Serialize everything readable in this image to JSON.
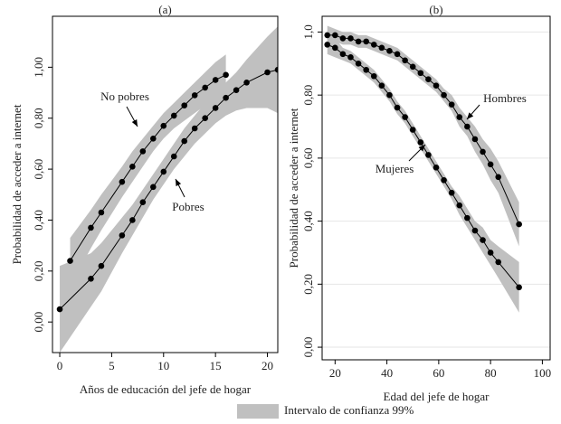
{
  "chart_data": [
    {
      "type": "line",
      "title": "(a)",
      "x_label": "Años de educación del jefe de hogar",
      "y_label": "Probabilidad de acceder a internet",
      "xlim": [
        -0.7,
        21
      ],
      "ylim": [
        -0.12,
        1.2
      ],
      "grid": false,
      "xticks": [
        0,
        5,
        10,
        15,
        20
      ],
      "yticks": [
        {
          "value": 0,
          "label": "0,00"
        },
        {
          "value": 0.2,
          "label": "0,20"
        },
        {
          "value": 0.4,
          "label": "0,40"
        },
        {
          "value": 0.6,
          "label": "0,60"
        },
        {
          "value": 0.8,
          "label": "0,80"
        },
        {
          "value": 1,
          "label": "1,00"
        }
      ],
      "series": [
        {
          "name": "No pobres",
          "color": "#000000",
          "x": [
            1,
            3,
            4,
            6,
            7,
            8,
            9,
            10,
            11,
            12,
            13,
            14,
            15,
            16
          ],
          "values": [
            0.24,
            0.37,
            0.43,
            0.55,
            0.61,
            0.67,
            0.72,
            0.77,
            0.81,
            0.85,
            0.89,
            0.92,
            0.95,
            0.97
          ],
          "ci_lower": [
            0.14,
            0.29,
            0.36,
            0.49,
            0.55,
            0.61,
            0.67,
            0.72,
            0.76,
            0.79,
            0.82,
            0.85,
            0.87,
            0.88
          ],
          "ci_upper": [
            0.33,
            0.44,
            0.5,
            0.61,
            0.67,
            0.72,
            0.77,
            0.82,
            0.86,
            0.9,
            0.94,
            0.98,
            1.02,
            1.05
          ]
        },
        {
          "name": "Pobres",
          "color": "#000000",
          "x": [
            0,
            3,
            4,
            6,
            7,
            8,
            9,
            10,
            11,
            12,
            13,
            14,
            15,
            16,
            17,
            18,
            20,
            21
          ],
          "values": [
            0.05,
            0.17,
            0.22,
            0.34,
            0.4,
            0.47,
            0.53,
            0.59,
            0.65,
            0.71,
            0.76,
            0.8,
            0.84,
            0.88,
            0.91,
            0.94,
            0.98,
            0.99
          ],
          "ci_lower": [
            -0.12,
            0.06,
            0.12,
            0.27,
            0.34,
            0.41,
            0.48,
            0.54,
            0.6,
            0.65,
            0.7,
            0.74,
            0.78,
            0.81,
            0.83,
            0.84,
            0.84,
            0.82
          ],
          "ci_upper": [
            0.22,
            0.27,
            0.31,
            0.41,
            0.46,
            0.52,
            0.58,
            0.64,
            0.7,
            0.76,
            0.81,
            0.86,
            0.9,
            0.94,
            0.98,
            1.03,
            1.12,
            1.16
          ]
        }
      ]
    },
    {
      "type": "line",
      "title": "(b)",
      "x_label": "Edad del jefe de hogar",
      "y_label": "Probabilidad de acceder a internet",
      "xlim": [
        15,
        103
      ],
      "ylim": [
        -0.04,
        1.05
      ],
      "grid": true,
      "xticks": [
        20,
        40,
        60,
        80,
        100
      ],
      "yticks": [
        {
          "value": 0,
          "label": "0,00"
        },
        {
          "value": 0.2,
          "label": "0,20"
        },
        {
          "value": 0.4,
          "label": "0,40"
        },
        {
          "value": 0.6,
          "label": "0,60"
        },
        {
          "value": 0.8,
          "label": "0,80"
        },
        {
          "value": 1,
          "label": "1,0"
        }
      ],
      "series": [
        {
          "name": "Hombres",
          "color": "#000000",
          "x": [
            17,
            20,
            23,
            26,
            29,
            32,
            35,
            38,
            41,
            44,
            47,
            50,
            53,
            56,
            59,
            62,
            65,
            68,
            71,
            74,
            77,
            80,
            83,
            91
          ],
          "values": [
            0.99,
            0.99,
            0.98,
            0.98,
            0.97,
            0.97,
            0.96,
            0.95,
            0.94,
            0.93,
            0.91,
            0.89,
            0.87,
            0.85,
            0.83,
            0.8,
            0.77,
            0.73,
            0.7,
            0.66,
            0.62,
            0.58,
            0.54,
            0.39
          ],
          "ci_lower": [
            0.96,
            0.97,
            0.96,
            0.96,
            0.95,
            0.95,
            0.94,
            0.93,
            0.92,
            0.91,
            0.89,
            0.87,
            0.85,
            0.83,
            0.81,
            0.78,
            0.75,
            0.7,
            0.67,
            0.62,
            0.58,
            0.53,
            0.49,
            0.32
          ],
          "ci_upper": [
            1.02,
            1.01,
            1.0,
            1.0,
            0.99,
            0.99,
            0.98,
            0.97,
            0.96,
            0.95,
            0.93,
            0.91,
            0.89,
            0.87,
            0.85,
            0.82,
            0.8,
            0.76,
            0.73,
            0.7,
            0.66,
            0.63,
            0.59,
            0.46
          ]
        },
        {
          "name": "Mujeres",
          "color": "#000000",
          "x": [
            17,
            20,
            23,
            26,
            29,
            32,
            35,
            38,
            41,
            44,
            47,
            50,
            53,
            56,
            59,
            62,
            65,
            68,
            71,
            74,
            77,
            80,
            83,
            91
          ],
          "values": [
            0.96,
            0.95,
            0.93,
            0.92,
            0.9,
            0.88,
            0.86,
            0.83,
            0.8,
            0.76,
            0.73,
            0.69,
            0.65,
            0.61,
            0.57,
            0.53,
            0.49,
            0.45,
            0.41,
            0.37,
            0.34,
            0.3,
            0.27,
            0.19
          ],
          "ci_lower": [
            0.93,
            0.92,
            0.91,
            0.9,
            0.88,
            0.86,
            0.84,
            0.81,
            0.78,
            0.74,
            0.71,
            0.67,
            0.63,
            0.59,
            0.55,
            0.51,
            0.47,
            0.42,
            0.38,
            0.34,
            0.3,
            0.26,
            0.22,
            0.11
          ],
          "ci_upper": [
            0.99,
            0.98,
            0.95,
            0.94,
            0.92,
            0.9,
            0.88,
            0.85,
            0.82,
            0.78,
            0.75,
            0.71,
            0.67,
            0.63,
            0.59,
            0.55,
            0.51,
            0.48,
            0.44,
            0.4,
            0.38,
            0.34,
            0.32,
            0.27
          ]
        }
      ]
    }
  ],
  "legend": {
    "label": "Intervalo de confianza 99%",
    "color": "#c0c0c0"
  }
}
